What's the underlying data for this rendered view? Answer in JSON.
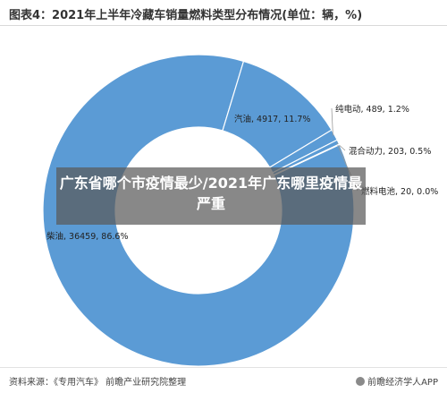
{
  "title": "图表4：2021年上半年冷藏车销量燃料类型分布情况(单位：辆，%)",
  "overlay_text": "广东省哪个市疫情最少/2021年广东哪里疫情最严重",
  "source": "资料来源：《专用汽车》 前瞻产业研究院整理",
  "brand": "前瞻经济学人APP",
  "colors": {
    "slice": "#5b9bd5",
    "slice_edge": "#ffffff",
    "leader": "#9a9a9a"
  },
  "chart_data": {
    "type": "pie",
    "donut": true,
    "unit": "辆",
    "slices": [
      {
        "name": "柴油",
        "value": 36459,
        "percent": 86.6,
        "label": "柴油, 36459, 86.6%"
      },
      {
        "name": "汽油",
        "value": 4917,
        "percent": 11.7,
        "label": "汽油, 4917, 11.7%"
      },
      {
        "name": "纯电动",
        "value": 489,
        "percent": 1.2,
        "label": "纯电动, 489, 1.2%"
      },
      {
        "name": "混合动力",
        "value": 203,
        "percent": 0.5,
        "label": "混合动力, 203, 0.5%"
      },
      {
        "name": "燃料电池",
        "value": 20,
        "percent": 0.0,
        "label": "燃料电池, 20, 0.0%"
      }
    ]
  }
}
